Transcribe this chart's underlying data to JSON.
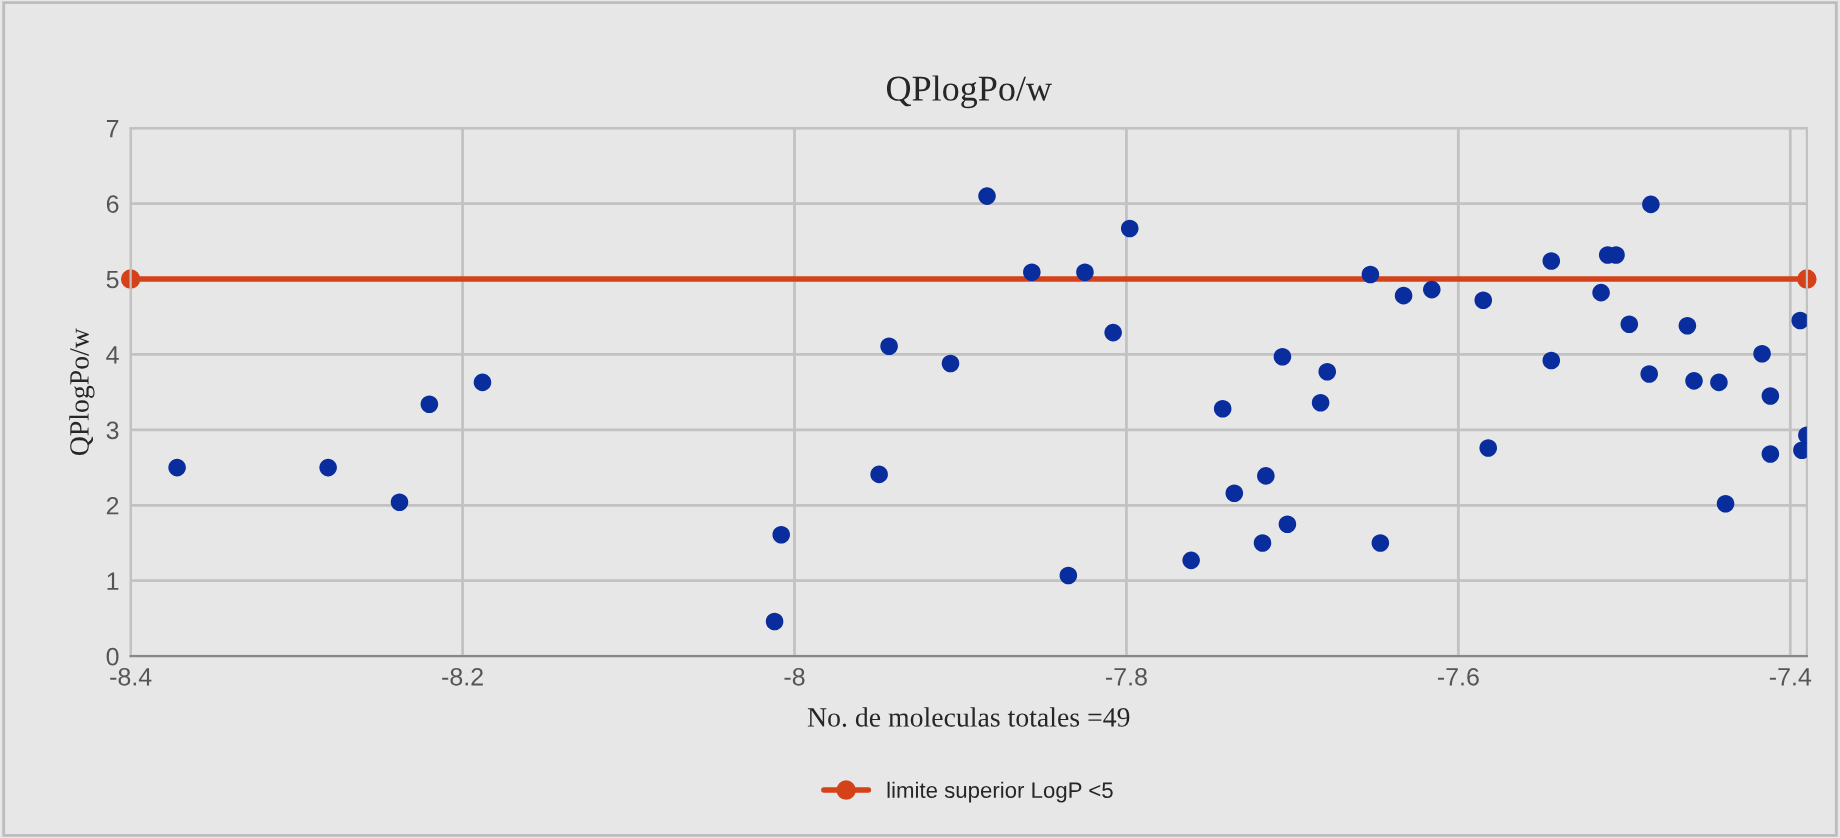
{
  "chart_data": {
    "type": "scatter",
    "title": "QPlogPo/w",
    "xlabel": "No. de moleculas totales =49",
    "ylabel": "QPlogPo/w",
    "xlim": [
      -8.4,
      -7.39
    ],
    "xticks": [
      -8.4,
      -8.2,
      -8,
      -7.8,
      -7.6,
      -7.4
    ],
    "ylim": [
      0,
      7
    ],
    "yticks": [
      0,
      1,
      2,
      3,
      4,
      5,
      6,
      7
    ],
    "grid": true,
    "legend": "bottom",
    "marker": "circle",
    "series": [
      {
        "color": "#0a2d9e",
        "x": [
          -8.372,
          -8.281,
          -8.238,
          -8.22,
          -8.188,
          -8.012,
          -8.008,
          -7.949,
          -7.943,
          -7.906,
          -7.884,
          -7.857,
          -7.825,
          -7.835,
          -7.808,
          -7.798,
          -7.761,
          -7.742,
          -7.735,
          -7.718,
          -7.716,
          -7.706,
          -7.703,
          -7.683,
          -7.679,
          -7.653,
          -7.647,
          -7.633,
          -7.616,
          -7.585,
          -7.582,
          -7.544,
          -7.544,
          -7.514,
          -7.51,
          -7.505,
          -7.497,
          -7.484,
          -7.485,
          -7.462,
          -7.458,
          -7.443,
          -7.439,
          -7.417,
          -7.412,
          -7.412,
          -7.394,
          -7.393,
          -7.39
        ],
        "values": [
          2.5,
          2.5,
          2.04,
          3.34,
          3.63,
          0.46,
          1.61,
          2.41,
          4.11,
          3.88,
          6.1,
          5.09,
          5.09,
          1.07,
          4.29,
          5.67,
          1.27,
          3.28,
          2.16,
          1.5,
          2.39,
          3.97,
          1.75,
          3.36,
          3.77,
          5.06,
          1.5,
          4.78,
          4.86,
          4.72,
          2.76,
          5.24,
          3.92,
          4.82,
          5.32,
          5.32,
          4.4,
          5.99,
          3.74,
          4.38,
          3.65,
          3.63,
          2.02,
          4.01,
          3.45,
          2.68,
          4.45,
          2.73,
          2.93
        ]
      },
      {
        "type": "line",
        "name": "limite superior LogP <5",
        "color": "#d5421a",
        "x": [
          -8.4,
          -7.39
        ],
        "values": [
          5,
          5
        ]
      }
    ]
  }
}
